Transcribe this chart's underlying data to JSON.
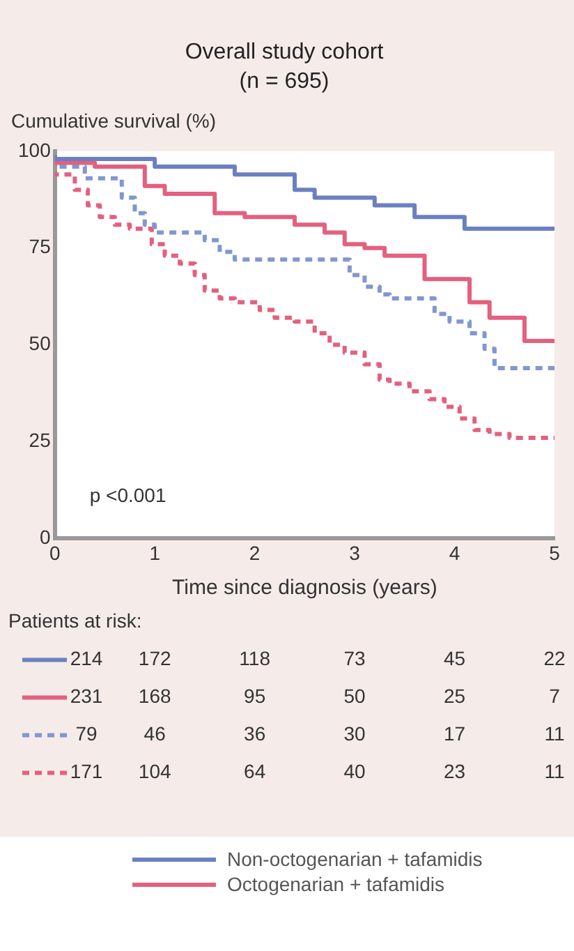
{
  "chart_data": {
    "type": "step",
    "title": "Overall study cohort",
    "subtitle": "(n = 695)",
    "ylabel": "Cumulative survival (%)",
    "xlabel": "Time since diagnosis (years)",
    "xlim": [
      0,
      5
    ],
    "xticks": [
      0,
      1,
      2,
      3,
      4,
      5
    ],
    "ylim": [
      0,
      100
    ],
    "yticks": [
      0,
      25,
      50,
      75,
      100
    ],
    "grid": false,
    "legend": "bottom",
    "marker": "none",
    "annotations": [
      "p <0.001",
      "Patients at risk:",
      "214 172 118 73 45 22",
      "231 168 95 50 25 7",
      "79 46 36 30 17 11",
      "171 104 64 40 23 11"
    ],
    "series": [
      {
        "name": "Non-octogenarian + tafamidis",
        "color": "#6b80c0",
        "line_style": "solid",
        "x": [
          0,
          1.0,
          1.8,
          2.4,
          2.6,
          3.2,
          3.6,
          4.1,
          4.6,
          5
        ],
        "values": [
          99,
          98,
          96,
          94,
          90,
          88,
          86,
          83,
          80,
          80
        ]
      },
      {
        "name": "Octogenarian + tafamidis",
        "color": "#e3607f",
        "line_style": "solid",
        "x": [
          0,
          0.4,
          0.9,
          1.1,
          1.6,
          1.9,
          2.4,
          2.7,
          2.9,
          3.1,
          3.3,
          3.7,
          4.15,
          4.35,
          4.7,
          5
        ],
        "values": [
          98,
          97,
          96,
          91,
          89,
          84,
          83,
          81,
          79,
          76,
          75,
          73,
          67,
          61,
          57,
          51
        ]
      },
      {
        "color": "#8197d0",
        "line_style": "dashed",
        "x": [
          0,
          0.3,
          0.67,
          0.8,
          0.9,
          1.0,
          1.5,
          1.65,
          1.8,
          2.95,
          3.1,
          3.25,
          3.35,
          3.8,
          3.95,
          4.15,
          4.3,
          4.4,
          4.45,
          5
        ],
        "values": [
          98,
          96,
          93,
          88,
          84,
          81,
          79,
          77,
          74,
          72,
          68,
          65,
          63,
          62,
          58,
          56,
          53,
          49,
          44,
          44
        ]
      },
      {
        "color": "#e3607f",
        "line_style": "dashed",
        "x": [
          0,
          0.2,
          0.33,
          0.45,
          0.6,
          0.75,
          0.97,
          1.1,
          1.25,
          1.4,
          1.5,
          1.65,
          1.8,
          2.05,
          2.2,
          2.4,
          2.6,
          2.75,
          2.9,
          3.1,
          3.25,
          3.35,
          3.55,
          3.75,
          3.9,
          4.05,
          4.2,
          4.35,
          4.55,
          5
        ],
        "values": [
          98,
          94,
          90,
          86,
          83,
          81,
          80,
          76,
          73,
          71,
          68,
          64,
          62,
          61,
          59,
          57,
          56,
          53,
          50,
          48,
          45,
          41,
          40,
          38,
          36,
          34,
          31,
          28,
          27,
          26
        ]
      }
    ]
  }
}
